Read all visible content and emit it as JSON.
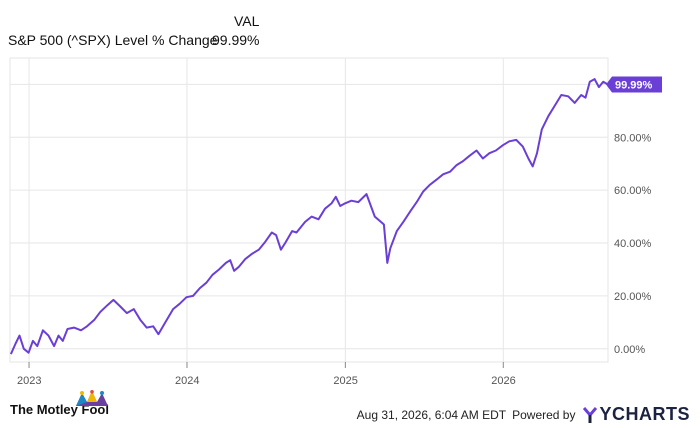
{
  "header": {
    "column_label": "VAL",
    "series_label": "S&P 500 (^SPX) Level % Change",
    "series_value": "99.99%"
  },
  "footer": {
    "brand": "The Motley Fool",
    "timestamp": "Aug 31, 2026, 6:04 AM EDT",
    "powered_by": "Powered by",
    "ycharts_logo": "YCHARTS"
  },
  "colors": {
    "line": "#6a3fd6",
    "grid": "#e6e6e6",
    "badge_bg": "#6a3fd6",
    "badge_text": "#ffffff",
    "axis_text": "#555555"
  },
  "chart_data": {
    "type": "line",
    "title": "",
    "xlabel": "",
    "ylabel": "",
    "ylim": [
      -5,
      110
    ],
    "y_ticks": [
      "0.00%",
      "20.00%",
      "40.00%",
      "60.00%",
      "80.00%"
    ],
    "x_ticks": [
      "2023",
      "2024",
      "2025",
      "2026"
    ],
    "end_label": "99.99%",
    "grid": true,
    "series": [
      {
        "name": "S&P 500 (^SPX) Level % Change",
        "x": [
          "2022-11-20",
          "2022-12-01",
          "2022-12-10",
          "2022-12-20",
          "2022-12-31",
          "2023-01-10",
          "2023-01-20",
          "2023-02-02",
          "2023-02-15",
          "2023-02-28",
          "2023-03-10",
          "2023-03-20",
          "2023-03-31",
          "2023-04-15",
          "2023-05-01",
          "2023-05-15",
          "2023-06-01",
          "2023-06-15",
          "2023-07-01",
          "2023-07-15",
          "2023-07-31",
          "2023-08-15",
          "2023-08-31",
          "2023-09-15",
          "2023-09-30",
          "2023-10-15",
          "2023-10-27",
          "2023-11-10",
          "2023-11-30",
          "2023-12-15",
          "2023-12-31",
          "2024-01-15",
          "2024-01-31",
          "2024-02-15",
          "2024-02-29",
          "2024-03-15",
          "2024-03-31",
          "2024-04-10",
          "2024-04-19",
          "2024-04-30",
          "2024-05-15",
          "2024-05-31",
          "2024-06-15",
          "2024-06-30",
          "2024-07-15",
          "2024-07-25",
          "2024-08-05",
          "2024-08-15",
          "2024-08-31",
          "2024-09-10",
          "2024-09-30",
          "2024-10-15",
          "2024-10-31",
          "2024-11-15",
          "2024-11-30",
          "2024-12-10",
          "2024-12-20",
          "2024-12-31",
          "2025-01-15",
          "2025-01-31",
          "2025-02-19",
          "2025-03-10",
          "2025-03-31",
          "2025-04-08",
          "2025-04-15",
          "2025-04-30",
          "2025-05-15",
          "2025-05-31",
          "2025-06-15",
          "2025-06-30",
          "2025-07-15",
          "2025-07-31",
          "2025-08-15",
          "2025-08-31",
          "2025-09-15",
          "2025-09-30",
          "2025-10-15",
          "2025-10-31",
          "2025-11-15",
          "2025-11-30",
          "2025-12-15",
          "2025-12-31",
          "2026-01-15",
          "2026-01-31",
          "2026-02-15",
          "2026-02-28",
          "2026-03-10",
          "2026-03-20",
          "2026-03-31",
          "2026-04-15",
          "2026-04-30",
          "2026-05-15",
          "2026-05-31",
          "2026-06-15",
          "2026-06-30",
          "2026-07-10",
          "2026-07-20",
          "2026-07-31",
          "2026-08-10",
          "2026-08-20",
          "2026-08-31"
        ],
        "y": [
          -2.0,
          2.0,
          5.0,
          0.0,
          -1.5,
          3.0,
          1.0,
          7.0,
          5.0,
          1.0,
          5.0,
          3.0,
          7.5,
          8.0,
          7.0,
          8.5,
          11.0,
          14.0,
          16.5,
          18.5,
          16.0,
          13.5,
          15.0,
          11.0,
          8.0,
          8.5,
          5.5,
          9.5,
          15.0,
          17.0,
          19.5,
          20.0,
          23.0,
          25.0,
          28.0,
          30.0,
          32.5,
          33.5,
          29.5,
          31.0,
          34.0,
          36.0,
          37.5,
          40.5,
          44.0,
          43.0,
          37.5,
          40.0,
          44.5,
          44.0,
          48.0,
          50.0,
          49.0,
          53.0,
          55.0,
          57.5,
          54.0,
          55.0,
          56.0,
          55.5,
          58.5,
          50.0,
          47.0,
          32.5,
          38.0,
          44.5,
          48.0,
          52.0,
          55.5,
          59.5,
          62.0,
          64.0,
          66.0,
          67.0,
          69.5,
          71.0,
          73.0,
          75.0,
          72.0,
          74.0,
          75.0,
          77.0,
          78.5,
          79.0,
          76.5,
          72.0,
          69.0,
          74.0,
          83.0,
          88.0,
          92.0,
          96.0,
          95.5,
          93.0,
          96.0,
          95.0,
          101.0,
          102.0,
          99.0,
          101.0,
          99.99
        ]
      }
    ]
  }
}
